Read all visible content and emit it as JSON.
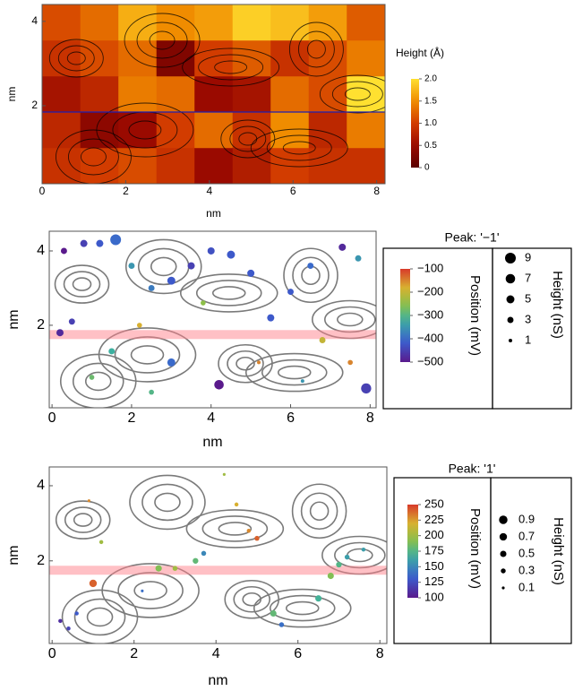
{
  "chart_data": [
    {
      "type": "heatmap",
      "x_label": "nm",
      "y_label": "nm",
      "xlim": [
        0,
        8.2
      ],
      "ylim": [
        0.15,
        4.4
      ],
      "xticks": [
        0,
        2,
        4,
        6,
        8
      ],
      "yticks": [
        2,
        4
      ],
      "x": [
        0.46,
        1.37,
        2.28,
        3.19,
        4.1,
        5.01,
        5.92,
        6.83,
        7.74
      ],
      "y": [
        3.97,
        3.12,
        2.27,
        1.42,
        0.57
      ],
      "z": [
        [
          1.1,
          1.3,
          1.7,
          1.5,
          1.6,
          1.9,
          1.8,
          1.6,
          1.2
        ],
        [
          0.9,
          1.1,
          1.3,
          0.3,
          1.0,
          1.2,
          0.9,
          1.1,
          1.4
        ],
        [
          0.6,
          0.8,
          1.4,
          1.3,
          0.5,
          0.6,
          1.3,
          1.1,
          2.0
        ],
        [
          0.8,
          0.4,
          0.5,
          1.0,
          1.3,
          0.9,
          1.5,
          0.8,
          1.4
        ],
        [
          0.9,
          1.0,
          1.1,
          0.9,
          0.5,
          0.7,
          1.0,
          0.9,
          0.9
        ]
      ],
      "line_y": 1.85,
      "line_color": "#1f1fb4",
      "colorbar": {
        "title": "Height (Å)",
        "clim": [
          0,
          2
        ],
        "ticks": [
          0,
          0.5,
          {
            "value": 1,
            "label": "1.0"
          },
          1.5,
          {
            "value": 2,
            "label": "2.0"
          }
        ]
      }
    },
    {
      "type": "scatter",
      "title": "Peak: '−1'",
      "x_label": "nm",
      "y_label": "nm",
      "xlim": [
        -0.07,
        8.15
      ],
      "ylim": [
        -0.22,
        4.53
      ],
      "xticks": [
        0,
        2,
        4,
        6,
        8
      ],
      "yticks": [
        2,
        4
      ],
      "x": [
        0.2,
        0.5,
        0.3,
        0.8,
        1.2,
        1.6,
        2.0,
        2.5,
        3.0,
        3.5,
        4.0,
        4.5,
        5.0,
        5.5,
        6.0,
        6.5,
        7.3,
        7.7,
        7.9,
        4.2,
        3.0,
        1.5,
        2.2,
        6.8,
        7.5,
        3.8,
        1.0,
        5.2,
        6.3,
        2.5
      ],
      "y": [
        1.8,
        2.1,
        4.0,
        4.2,
        4.2,
        4.3,
        3.6,
        3.0,
        3.2,
        3.6,
        4.0,
        3.9,
        3.4,
        2.2,
        2.9,
        3.6,
        4.1,
        3.8,
        0.3,
        0.4,
        1.0,
        1.3,
        2.0,
        1.6,
        1.0,
        2.6,
        0.6,
        1.0,
        0.5,
        0.2
      ],
      "position": [
        -480,
        -450,
        -500,
        -450,
        -420,
        -400,
        -350,
        -380,
        -420,
        -450,
        -430,
        -420,
        -420,
        -420,
        -420,
        -400,
        -480,
        -350,
        -450,
        -500,
        -400,
        -320,
        -180,
        -200,
        -150,
        -250,
        -280,
        -150,
        -350,
        -300
      ],
      "height": [
        4,
        3,
        3,
        4,
        4,
        9,
        3,
        3,
        5,
        4,
        4,
        5,
        4,
        4,
        3,
        3,
        4,
        3,
        8,
        7,
        5,
        3,
        2,
        3,
        2,
        2,
        2,
        1,
        1,
        2
      ],
      "band_y": 1.75,
      "colorbar": {
        "title": "Position (mV)",
        "clim": [
          -500,
          -100
        ],
        "ticks": [
          {
            "value": -100,
            "label": "−100"
          },
          {
            "value": -200,
            "label": "−200"
          },
          {
            "value": -300,
            "label": "−300"
          },
          {
            "value": -400,
            "label": "−400"
          },
          {
            "value": -500,
            "label": "−500"
          }
        ]
      },
      "size_legend": {
        "title": "Height (nS)",
        "values": [
          9,
          7,
          5,
          3,
          1
        ]
      }
    },
    {
      "type": "scatter",
      "title": "Peak: '1'",
      "x_label": "nm",
      "y_label": "nm",
      "xlim": [
        -0.07,
        8.17
      ],
      "ylim": [
        -0.2,
        4.5
      ],
      "xticks": [
        0,
        2,
        4,
        6,
        8
      ],
      "yticks": [
        2,
        4
      ],
      "x": [
        1.0,
        2.6,
        3.0,
        3.5,
        3.7,
        6.8,
        7.0,
        7.2,
        6.5,
        5.4,
        5.6,
        0.2,
        0.4,
        0.6,
        1.2,
        5.0,
        4.8,
        4.5,
        0.9,
        2.2,
        7.6,
        4.2
      ],
      "y": [
        1.4,
        1.8,
        1.8,
        2.0,
        2.2,
        1.6,
        1.9,
        2.1,
        1.0,
        0.6,
        0.3,
        0.4,
        0.2,
        0.6,
        2.5,
        2.6,
        2.8,
        3.5,
        3.6,
        1.2,
        2.3,
        4.3
      ],
      "position": [
        240,
        190,
        200,
        180,
        150,
        190,
        175,
        160,
        170,
        180,
        140,
        110,
        120,
        130,
        200,
        240,
        230,
        220,
        230,
        140,
        160,
        200
      ],
      "height": [
        0.7,
        0.5,
        0.3,
        0.4,
        0.3,
        0.5,
        0.4,
        0.3,
        0.5,
        0.5,
        0.3,
        0.2,
        0.2,
        0.2,
        0.2,
        0.3,
        0.2,
        0.2,
        0.1,
        0.1,
        0.2,
        0.1
      ],
      "band_y": 1.75,
      "colorbar": {
        "title": "Position (mV)",
        "clim": [
          100,
          250
        ],
        "ticks": [
          250,
          225,
          200,
          175,
          150,
          125,
          100
        ]
      },
      "size_legend": {
        "title": "Height (nS)",
        "values": [
          0.9,
          0.7,
          0.5,
          0.3,
          0.1
        ]
      }
    }
  ]
}
